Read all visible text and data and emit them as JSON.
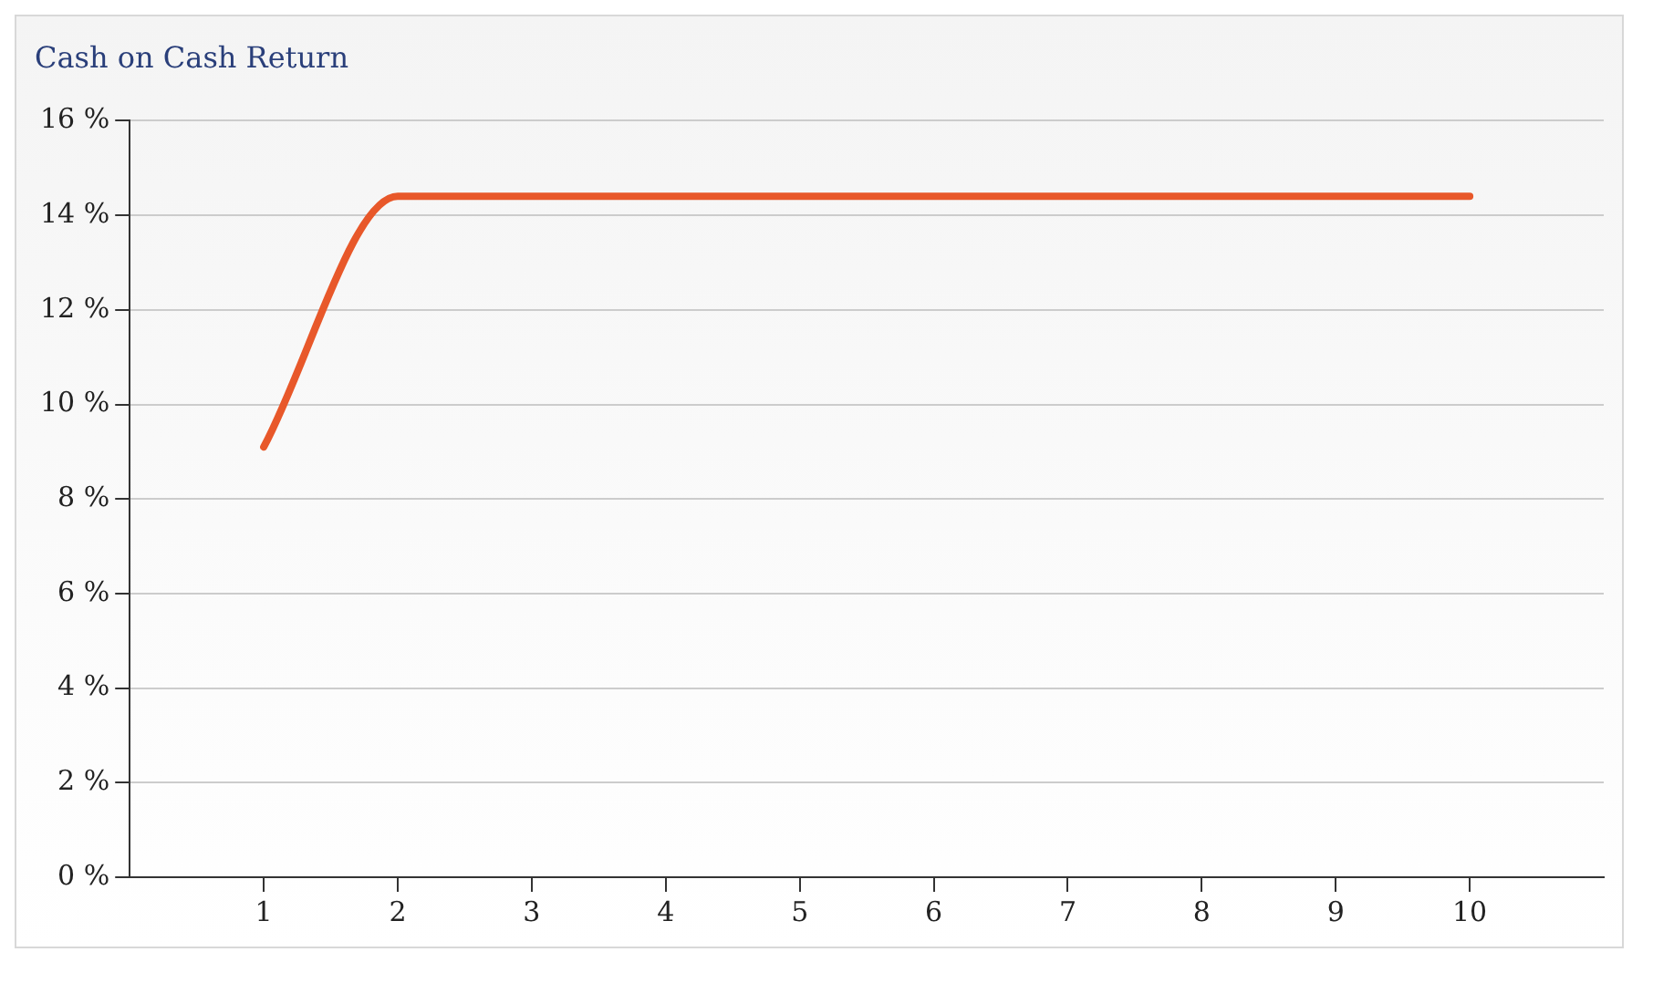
{
  "chart_data": {
    "type": "line",
    "title": "Cash on Cash Return",
    "x": [
      1,
      2,
      3,
      4,
      5,
      6,
      7,
      8,
      9,
      10
    ],
    "series": [
      {
        "color": "#e8582a",
        "values": [
          9.1,
          14.4,
          14.4,
          14.4,
          14.4,
          14.4,
          14.4,
          14.4,
          14.4,
          14.4
        ]
      }
    ],
    "xlim": [
      0,
      11
    ],
    "xticks": [
      1,
      2,
      3,
      4,
      5,
      6,
      7,
      8,
      9,
      10
    ],
    "ylim": [
      0,
      16
    ],
    "yticks": [
      {
        "value": 0,
        "label": "0 %"
      },
      {
        "value": 2,
        "label": "2 %"
      },
      {
        "value": 4,
        "label": "4 %"
      },
      {
        "value": 6,
        "label": "6 %"
      },
      {
        "value": 8,
        "label": "8 %"
      },
      {
        "value": 10,
        "label": "10 %"
      },
      {
        "value": 12,
        "label": "12 %"
      },
      {
        "value": 14,
        "label": "14 %"
      },
      {
        "value": 16,
        "label": "16 %"
      }
    ],
    "grid": "y",
    "legend": false,
    "marker": "none",
    "line_style": "solid"
  }
}
